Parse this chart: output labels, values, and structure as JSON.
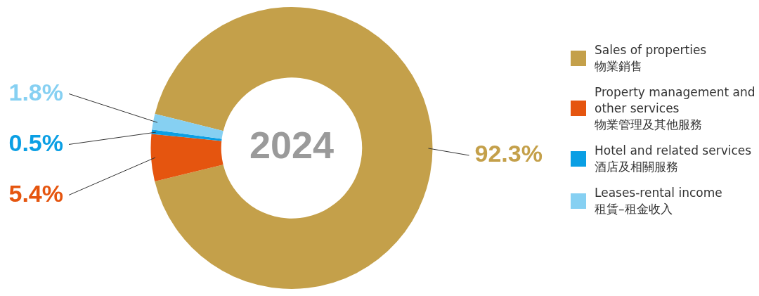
{
  "chart_data": {
    "type": "donut",
    "title": "2024",
    "categories": [
      "Sales of properties\n物業銷售",
      "Property management and\nother services\n物業管理及其他服務",
      "Hotel and related services\n酒店及相關服務",
      "Leases-rental income\n租賃–租金收入"
    ],
    "values": [
      92.3,
      5.4,
      0.5,
      1.8
    ],
    "colors": [
      "#c4a04a",
      "#e5550f",
      "#0a9fe4",
      "#86d0f2"
    ],
    "value_labels": [
      "92.3%",
      "5.4%",
      "0.5%",
      "1.8%"
    ],
    "legend": "right"
  }
}
